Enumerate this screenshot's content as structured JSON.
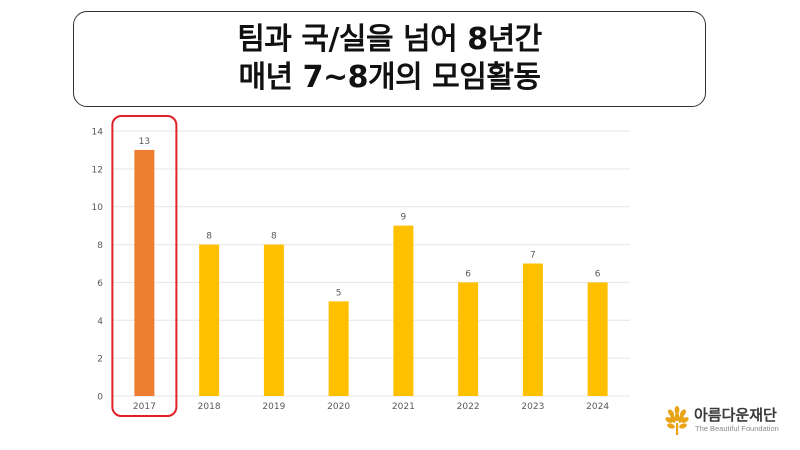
{
  "title": {
    "line1": "팀과 국/실을 넘어 8년간",
    "line2": "매년 7~8개의 모임활동"
  },
  "chart_data": {
    "type": "bar",
    "categories": [
      "2017",
      "2018",
      "2019",
      "2020",
      "2021",
      "2022",
      "2023",
      "2024"
    ],
    "values": [
      13,
      8,
      8,
      5,
      9,
      6,
      7,
      6
    ],
    "ylim": [
      0,
      14
    ],
    "yticks": [
      0,
      2,
      4,
      6,
      8,
      10,
      12,
      14
    ],
    "grid": true,
    "highlight_index": 0,
    "colors": {
      "bar": "#FFC000",
      "highlight": "#ED7D31",
      "highlight_outline": "#E0202A",
      "grid": "#E6E6E6",
      "label": "#595959"
    },
    "title": "",
    "xlabel": "",
    "ylabel": ""
  },
  "logo": {
    "name": "아름다운재단",
    "tagline": "The Beautiful Foundation",
    "icon": "leaf-tree-icon",
    "color": "#E8A317"
  }
}
